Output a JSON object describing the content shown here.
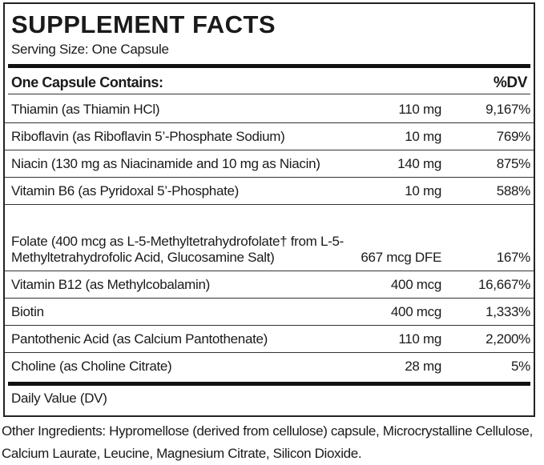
{
  "title": "SUPPLEMENT FACTS",
  "serving_size": "Serving Size: One Capsule",
  "header": {
    "label": "One Capsule Contains:",
    "dv": "%DV"
  },
  "rows": [
    {
      "name": "Thiamin (as Thiamin HCl)",
      "amount": "110 mg",
      "dv": "9,167%"
    },
    {
      "name": "Riboflavin (as Riboflavin 5’-Phosphate Sodium)",
      "amount": "10 mg",
      "dv": "769%"
    },
    {
      "name": "Niacin (130 mg as Niacinamide and 10 mg as Niacin)",
      "amount": "140 mg",
      "dv": "875%"
    },
    {
      "name": "Vitamin B6 (as Pyridoxal 5’-Phosphate)",
      "amount": "10 mg",
      "dv": "588%"
    },
    {
      "name": "Folate (400 mcg as L-5-Methyltetrahydrofolate† from L-5-Methyltetrahydrofolic Acid, Glucosamine Salt)",
      "amount": "667 mcg DFE",
      "dv": "167%"
    },
    {
      "name": "Vitamin B12 (as Methylcobalamin)",
      "amount": "400 mcg",
      "dv": "16,667%"
    },
    {
      "name": "Biotin",
      "amount": "400 mcg",
      "dv": "1,333%"
    },
    {
      "name": "Pantothenic Acid (as Calcium Pantothenate)",
      "amount": "110 mg",
      "dv": "2,200%"
    },
    {
      "name": "Choline (as Choline Citrate)",
      "amount": "28 mg",
      "dv": "5%"
    }
  ],
  "footer": "Daily Value (DV)",
  "other_ingredients": "Other Ingredients: Hypromellose (derived from cellulose) capsule, Microcrystalline Cellulose, Calcium Laurate, Leucine, Magnesium Citrate, Silicon Dioxide."
}
